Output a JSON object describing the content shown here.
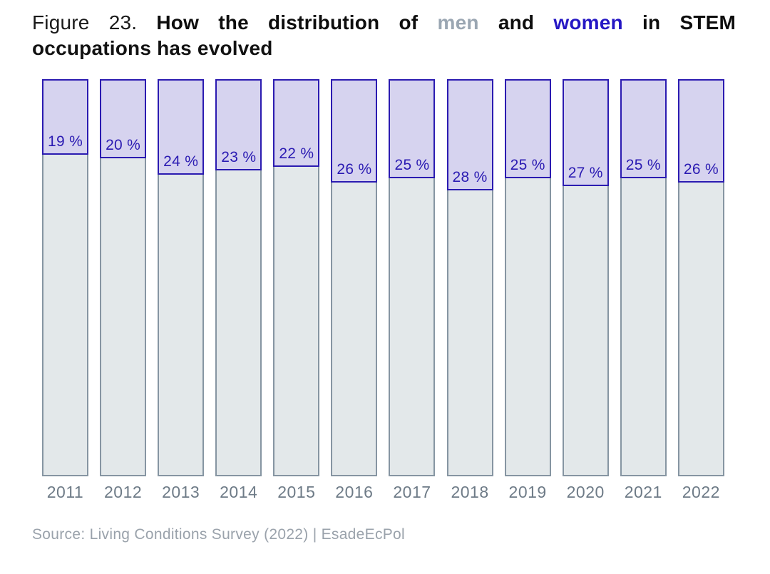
{
  "title": {
    "prefix": "Figure 23.",
    "part1": "How the distribution of",
    "men_word": "men",
    "and_word": "and",
    "women_word": "women",
    "part2": "in STEM",
    "line2": "occupations has evolved"
  },
  "source": "Source: Living Conditions Survey (2022) | EsadeEcPol",
  "colors": {
    "women_fill": "#d6d3ef",
    "women_border": "#2b1bb1",
    "women_value_label": "#2a1ab2",
    "men_fill": "#e3e8ea",
    "men_border": "#8695a2",
    "title_men_word": "#9aa6b2",
    "title_women_word": "#2517c4",
    "year_label": "#6e7b87",
    "source_text": "#9aa2ab"
  },
  "chart_data": {
    "type": "bar",
    "subtype": "stacked-100-percent",
    "title": "How the distribution of men and women in STEM occupations has evolved",
    "xlabel": "",
    "ylabel": "",
    "ylim": [
      0,
      100
    ],
    "grid": false,
    "legend": "color-coded words in title (men = grey, women = purple)",
    "categories": [
      "2011",
      "2012",
      "2013",
      "2014",
      "2015",
      "2016",
      "2017",
      "2018",
      "2019",
      "2020",
      "2021",
      "2022"
    ],
    "series": [
      {
        "name": "women",
        "color": "#d6d3ef",
        "values": [
          19,
          20,
          24,
          23,
          22,
          26,
          25,
          28,
          25,
          27,
          25,
          26
        ]
      },
      {
        "name": "men",
        "color": "#e3e8ea",
        "values": [
          81,
          80,
          76,
          77,
          78,
          74,
          75,
          72,
          75,
          73,
          75,
          74
        ]
      }
    ],
    "value_labels": [
      "19 %",
      "20 %",
      "24 %",
      "23 %",
      "22 %",
      "26 %",
      "25 %",
      "28 %",
      "25 %",
      "27 %",
      "25 %",
      "26 %"
    ]
  }
}
